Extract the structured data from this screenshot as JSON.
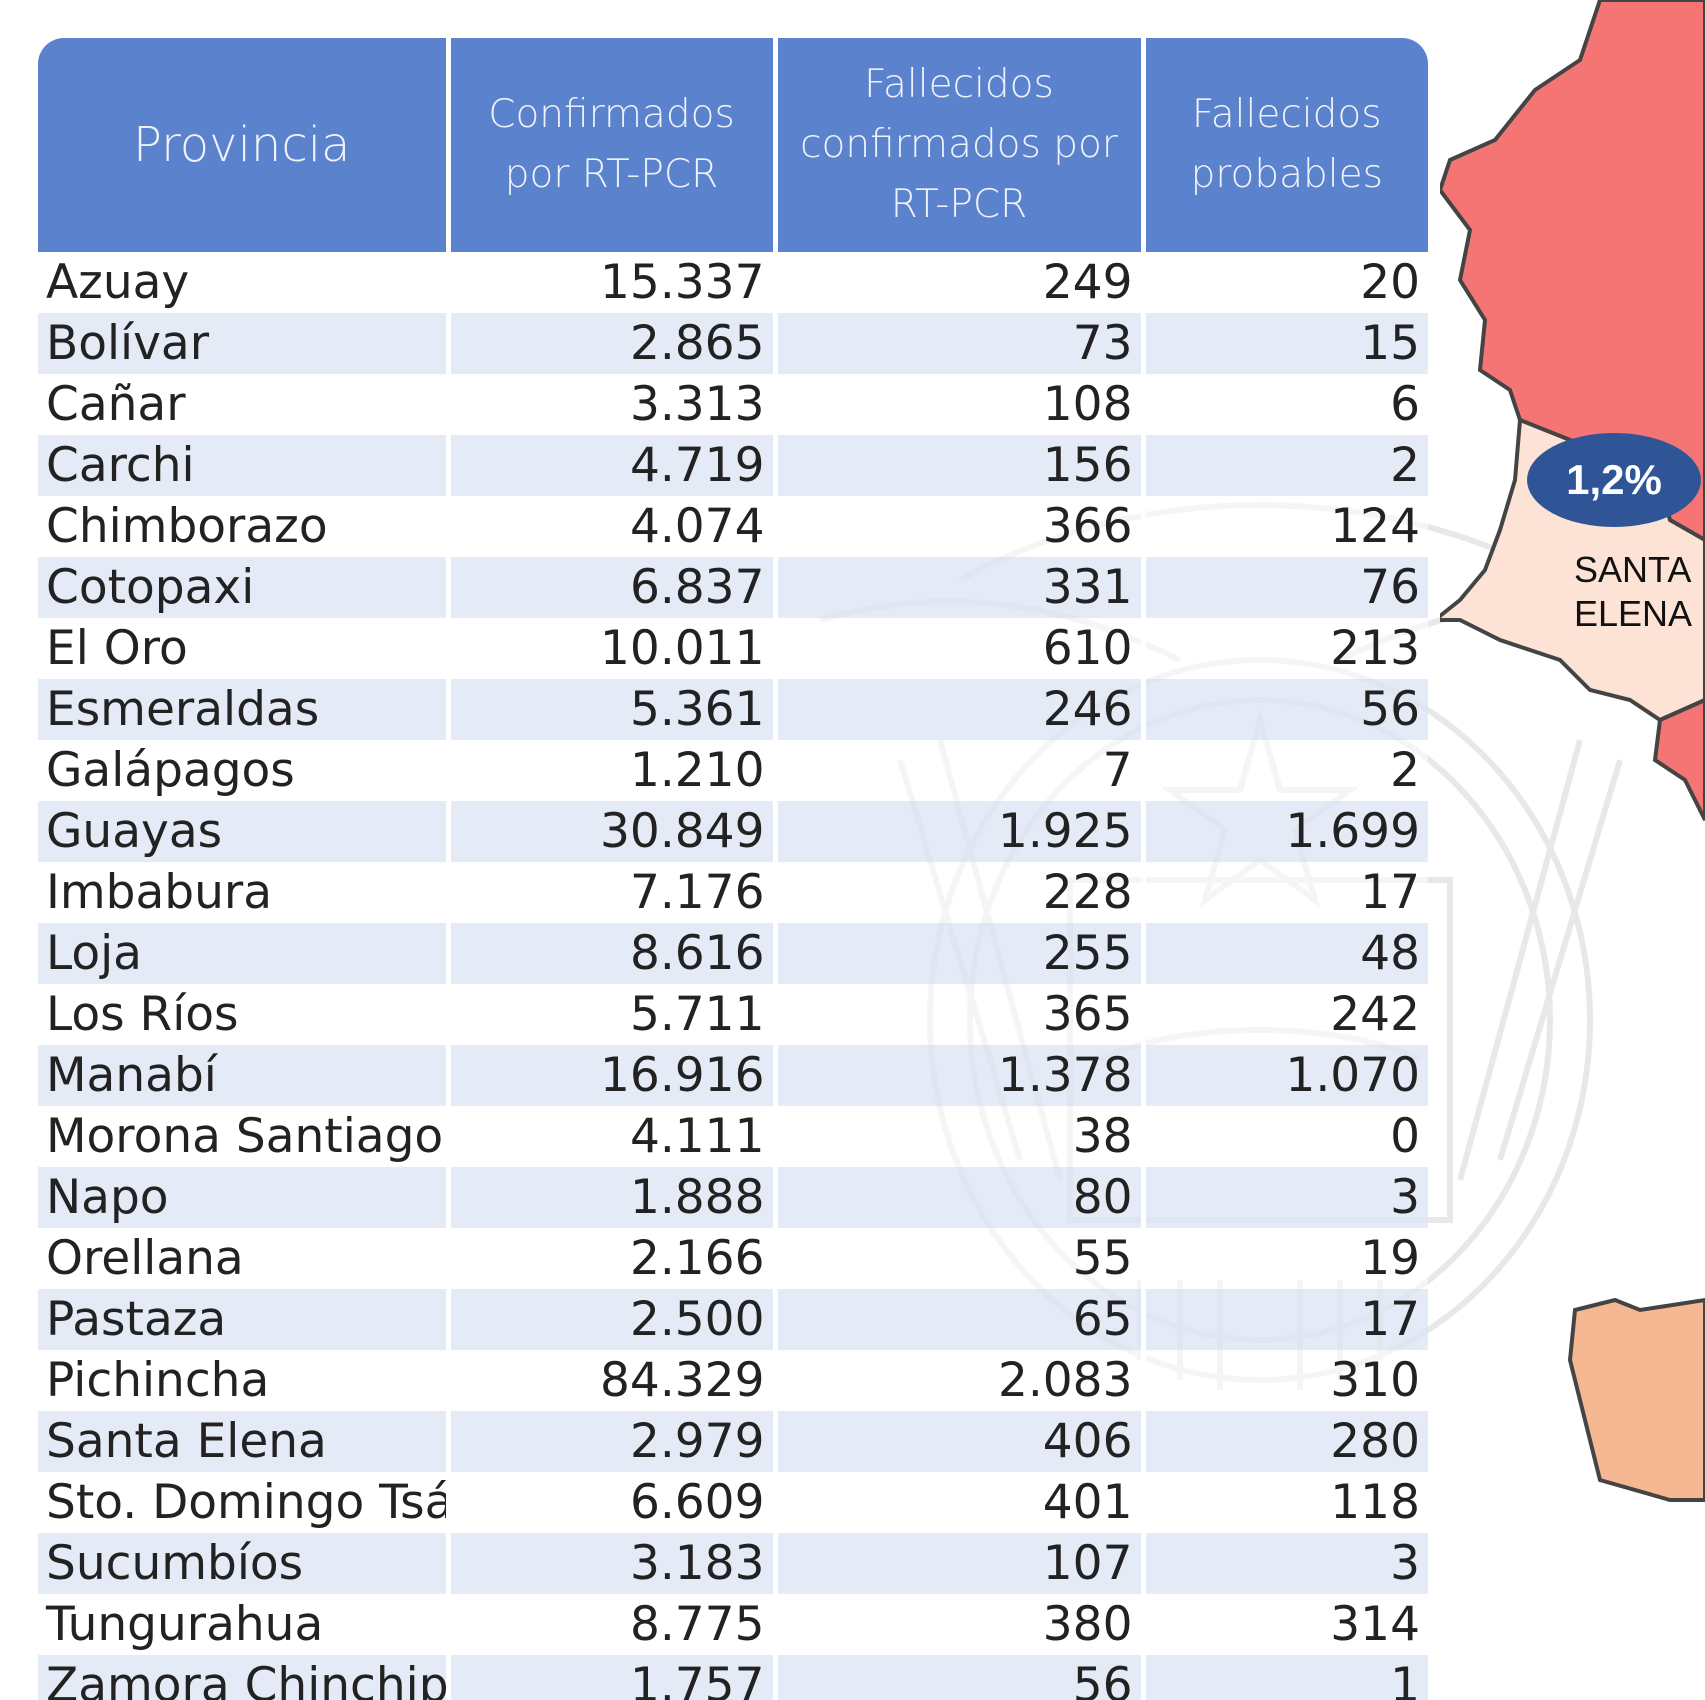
{
  "table": {
    "headers": [
      "Provincia",
      "Confirmados por RT-PCR",
      "Fallecidos confirmados por RT-PCR",
      "Fallecidos probables"
    ],
    "rows": [
      {
        "provincia": "Azuay",
        "confirmados": "15.337",
        "fallecidos_confirmados": "249",
        "fallecidos_probables": "20"
      },
      {
        "provincia": "Bolívar",
        "confirmados": "2.865",
        "fallecidos_confirmados": "73",
        "fallecidos_probables": "15"
      },
      {
        "provincia": "Cañar",
        "confirmados": "3.313",
        "fallecidos_confirmados": "108",
        "fallecidos_probables": "6"
      },
      {
        "provincia": "Carchi",
        "confirmados": "4.719",
        "fallecidos_confirmados": "156",
        "fallecidos_probables": "2"
      },
      {
        "provincia": "Chimborazo",
        "confirmados": "4.074",
        "fallecidos_confirmados": "366",
        "fallecidos_probables": "124"
      },
      {
        "provincia": "Cotopaxi",
        "confirmados": "6.837",
        "fallecidos_confirmados": "331",
        "fallecidos_probables": "76"
      },
      {
        "provincia": "El Oro",
        "confirmados": "10.011",
        "fallecidos_confirmados": "610",
        "fallecidos_probables": "213"
      },
      {
        "provincia": "Esmeraldas",
        "confirmados": "5.361",
        "fallecidos_confirmados": "246",
        "fallecidos_probables": "56"
      },
      {
        "provincia": "Galápagos",
        "confirmados": "1.210",
        "fallecidos_confirmados": "7",
        "fallecidos_probables": "2"
      },
      {
        "provincia": "Guayas",
        "confirmados": "30.849",
        "fallecidos_confirmados": "1.925",
        "fallecidos_probables": "1.699"
      },
      {
        "provincia": "Imbabura",
        "confirmados": "7.176",
        "fallecidos_confirmados": "228",
        "fallecidos_probables": "17"
      },
      {
        "provincia": "Loja",
        "confirmados": "8.616",
        "fallecidos_confirmados": "255",
        "fallecidos_probables": "48"
      },
      {
        "provincia": "Los Ríos",
        "confirmados": "5.711",
        "fallecidos_confirmados": "365",
        "fallecidos_probables": "242"
      },
      {
        "provincia": "Manabí",
        "confirmados": "16.916",
        "fallecidos_confirmados": "1.378",
        "fallecidos_probables": "1.070"
      },
      {
        "provincia": "Morona Santiago",
        "confirmados": "4.111",
        "fallecidos_confirmados": "38",
        "fallecidos_probables": "0"
      },
      {
        "provincia": "Napo",
        "confirmados": "1.888",
        "fallecidos_confirmados": "80",
        "fallecidos_probables": "3"
      },
      {
        "provincia": "Orellana",
        "confirmados": "2.166",
        "fallecidos_confirmados": "55",
        "fallecidos_probables": "19"
      },
      {
        "provincia": "Pastaza",
        "confirmados": "2.500",
        "fallecidos_confirmados": "65",
        "fallecidos_probables": "17"
      },
      {
        "provincia": "Pichincha",
        "confirmados": "84.329",
        "fallecidos_confirmados": "2.083",
        "fallecidos_probables": "310"
      },
      {
        "provincia": "Santa Elena",
        "confirmados": "2.979",
        "fallecidos_confirmados": "406",
        "fallecidos_probables": "280"
      },
      {
        "provincia": "Sto. Domingo Tsác",
        "confirmados": "6.609",
        "fallecidos_confirmados": "401",
        "fallecidos_probables": "118"
      },
      {
        "provincia": "Sucumbíos",
        "confirmados": "3.183",
        "fallecidos_confirmados": "107",
        "fallecidos_probables": "3"
      },
      {
        "provincia": "Tungurahua",
        "confirmados": "8.775",
        "fallecidos_confirmados": "380",
        "fallecidos_probables": "314"
      },
      {
        "provincia": "Zamora Chinchipe",
        "confirmados": "1.757",
        "fallecidos_confirmados": "56",
        "fallecidos_probables": "1"
      }
    ]
  },
  "map": {
    "badge": "1,2%",
    "label": "SANTA ELENA",
    "colors": {
      "high": "#f57575",
      "low": "#fde3d6",
      "medium": "#f5b893",
      "badge": "#2f5597",
      "border": "#444444"
    }
  },
  "colors": {
    "header_bg": "#5b82cc",
    "header_text": "#eef2fb",
    "stripe": "#dde4f3"
  }
}
